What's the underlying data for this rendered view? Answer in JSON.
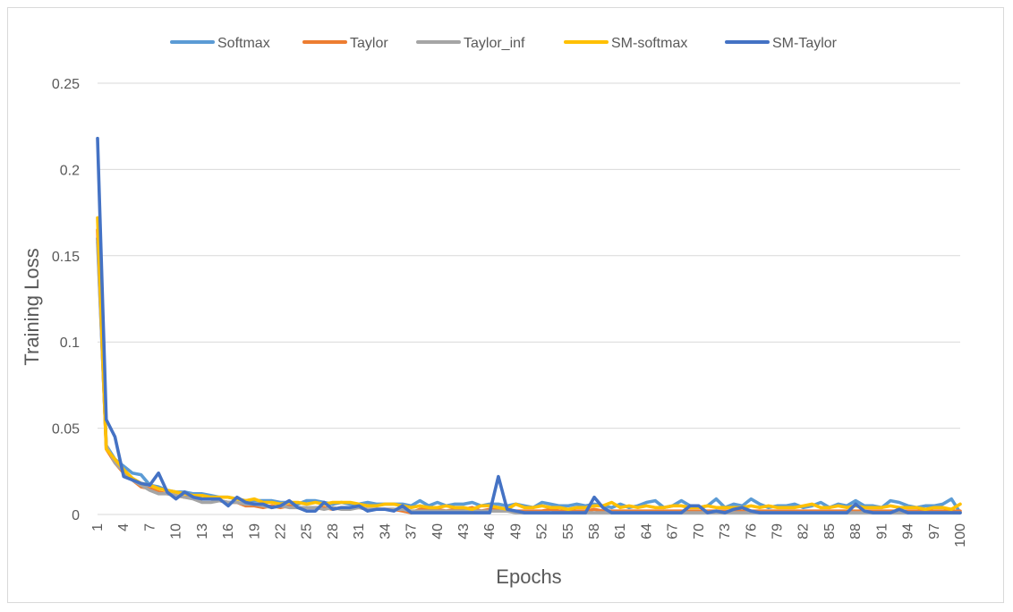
{
  "chart_data": {
    "type": "line",
    "title": "",
    "xlabel": "Epochs",
    "ylabel": "Training Loss",
    "ylim": [
      0,
      0.25
    ],
    "yticks": [
      "0",
      "0.05",
      "0.1",
      "0.15",
      "0.2",
      "0.25"
    ],
    "grid": "horizontal",
    "legend_position": "top",
    "x": [
      1,
      2,
      3,
      4,
      5,
      6,
      7,
      8,
      9,
      10,
      11,
      12,
      13,
      14,
      15,
      16,
      17,
      18,
      19,
      20,
      21,
      22,
      23,
      24,
      25,
      26,
      27,
      28,
      29,
      30,
      31,
      32,
      33,
      34,
      35,
      36,
      37,
      38,
      39,
      40,
      41,
      42,
      43,
      44,
      45,
      46,
      47,
      48,
      49,
      50,
      51,
      52,
      53,
      54,
      55,
      56,
      57,
      58,
      59,
      60,
      61,
      62,
      63,
      64,
      65,
      66,
      67,
      68,
      69,
      70,
      71,
      72,
      73,
      74,
      75,
      76,
      77,
      78,
      79,
      80,
      81,
      82,
      83,
      84,
      85,
      86,
      87,
      88,
      89,
      90,
      91,
      92,
      93,
      94,
      95,
      96,
      97,
      98,
      99,
      100
    ],
    "xticks": [
      "1",
      "4",
      "7",
      "10",
      "13",
      "16",
      "19",
      "22",
      "25",
      "28",
      "31",
      "34",
      "37",
      "40",
      "43",
      "46",
      "49",
      "52",
      "55",
      "58",
      "61",
      "64",
      "67",
      "70",
      "73",
      "76",
      "79",
      "82",
      "85",
      "88",
      "91",
      "94",
      "97",
      "100"
    ],
    "series": [
      {
        "name": "Softmax",
        "color": "#5b9bd5",
        "values": [
          0.16,
          0.04,
          0.032,
          0.028,
          0.024,
          0.023,
          0.017,
          0.016,
          0.014,
          0.013,
          0.013,
          0.012,
          0.012,
          0.011,
          0.01,
          0.01,
          0.009,
          0.008,
          0.008,
          0.008,
          0.008,
          0.007,
          0.007,
          0.006,
          0.008,
          0.008,
          0.007,
          0.006,
          0.007,
          0.006,
          0.006,
          0.007,
          0.006,
          0.006,
          0.006,
          0.006,
          0.005,
          0.008,
          0.005,
          0.007,
          0.005,
          0.006,
          0.006,
          0.007,
          0.005,
          0.006,
          0.006,
          0.005,
          0.006,
          0.005,
          0.004,
          0.007,
          0.006,
          0.005,
          0.005,
          0.006,
          0.005,
          0.006,
          0.005,
          0.004,
          0.006,
          0.004,
          0.005,
          0.007,
          0.008,
          0.004,
          0.005,
          0.008,
          0.005,
          0.004,
          0.005,
          0.009,
          0.004,
          0.006,
          0.005,
          0.009,
          0.006,
          0.004,
          0.005,
          0.005,
          0.006,
          0.004,
          0.005,
          0.007,
          0.004,
          0.006,
          0.005,
          0.008,
          0.005,
          0.005,
          0.004,
          0.008,
          0.007,
          0.005,
          0.004,
          0.005,
          0.005,
          0.006,
          0.009,
          0.001
        ]
      },
      {
        "name": "Taylor",
        "color": "#ed7d31",
        "values": [
          0.165,
          0.038,
          0.03,
          0.024,
          0.02,
          0.016,
          0.015,
          0.013,
          0.012,
          0.011,
          0.01,
          0.01,
          0.009,
          0.009,
          0.008,
          0.007,
          0.007,
          0.005,
          0.005,
          0.004,
          0.005,
          0.004,
          0.005,
          0.004,
          0.004,
          0.004,
          0.004,
          0.003,
          0.004,
          0.004,
          0.004,
          0.003,
          0.003,
          0.003,
          0.003,
          0.002,
          0.001,
          0.003,
          0.003,
          0.003,
          0.002,
          0.003,
          0.003,
          0.004,
          0.002,
          0.003,
          0.003,
          0.002,
          0.002,
          0.002,
          0.002,
          0.002,
          0.003,
          0.002,
          0.002,
          0.002,
          0.002,
          0.003,
          0.002,
          0.002,
          0.002,
          0.002,
          0.002,
          0.002,
          0.002,
          0.002,
          0.002,
          0.002,
          0.002,
          0.002,
          0.002,
          0.002,
          0.002,
          0.002,
          0.002,
          0.002,
          0.002,
          0.002,
          0.002,
          0.002,
          0.002,
          0.002,
          0.002,
          0.002,
          0.002,
          0.002,
          0.002,
          0.002,
          0.002,
          0.002,
          0.002,
          0.002,
          0.002,
          0.002,
          0.002,
          0.002,
          0.002,
          0.002,
          0.002,
          0.002
        ]
      },
      {
        "name": "Taylor_inf",
        "color": "#a5a5a5",
        "values": [
          0.158,
          0.04,
          0.03,
          0.025,
          0.02,
          0.017,
          0.014,
          0.012,
          0.012,
          0.011,
          0.01,
          0.009,
          0.007,
          0.007,
          0.008,
          0.007,
          0.007,
          0.006,
          0.006,
          0.005,
          0.004,
          0.005,
          0.004,
          0.004,
          0.004,
          0.004,
          0.003,
          0.004,
          0.003,
          0.003,
          0.004,
          0.003,
          0.003,
          0.003,
          0.003,
          0.003,
          0.002,
          0.002,
          0.002,
          0.002,
          0.002,
          0.002,
          0.002,
          0.002,
          0.002,
          0.002,
          0.002,
          0.002,
          0.001,
          0.001,
          0.001,
          0.001,
          0.001,
          0.001,
          0.001,
          0.001,
          0.001,
          0.001,
          0.001,
          0.001,
          0.001,
          0.001,
          0.001,
          0.001,
          0.001,
          0.001,
          0.001,
          0.001,
          0.001,
          0.001,
          0.001,
          0.001,
          0.001,
          0.001,
          0.001,
          0.001,
          0.001,
          0.001,
          0.001,
          0.001,
          0.001,
          0.001,
          0.001,
          0.001,
          0.001,
          0.001,
          0.001,
          0.001,
          0.001,
          0.001,
          0.001,
          0.001,
          0.001,
          0.001,
          0.001,
          0.001,
          0.001,
          0.001,
          0.001,
          0.001
        ]
      },
      {
        "name": "SM-softmax",
        "color": "#ffc000",
        "values": [
          0.172,
          0.038,
          0.032,
          0.026,
          0.021,
          0.018,
          0.017,
          0.015,
          0.014,
          0.013,
          0.012,
          0.011,
          0.011,
          0.01,
          0.01,
          0.01,
          0.009,
          0.008,
          0.009,
          0.007,
          0.007,
          0.006,
          0.007,
          0.007,
          0.006,
          0.007,
          0.006,
          0.007,
          0.007,
          0.007,
          0.006,
          0.005,
          0.005,
          0.006,
          0.006,
          0.005,
          0.004,
          0.005,
          0.004,
          0.004,
          0.005,
          0.004,
          0.004,
          0.003,
          0.005,
          0.005,
          0.004,
          0.003,
          0.006,
          0.004,
          0.004,
          0.005,
          0.004,
          0.004,
          0.003,
          0.004,
          0.004,
          0.005,
          0.005,
          0.007,
          0.004,
          0.005,
          0.004,
          0.005,
          0.004,
          0.004,
          0.005,
          0.005,
          0.004,
          0.004,
          0.005,
          0.004,
          0.004,
          0.004,
          0.004,
          0.005,
          0.004,
          0.005,
          0.004,
          0.004,
          0.004,
          0.005,
          0.006,
          0.004,
          0.004,
          0.005,
          0.004,
          0.005,
          0.004,
          0.004,
          0.004,
          0.005,
          0.004,
          0.004,
          0.004,
          0.003,
          0.004,
          0.004,
          0.003,
          0.006
        ]
      },
      {
        "name": "SM-Taylor",
        "color": "#4472c4",
        "values": [
          0.218,
          0.055,
          0.045,
          0.022,
          0.02,
          0.018,
          0.017,
          0.024,
          0.013,
          0.009,
          0.013,
          0.01,
          0.009,
          0.009,
          0.009,
          0.005,
          0.01,
          0.007,
          0.006,
          0.006,
          0.004,
          0.005,
          0.008,
          0.004,
          0.002,
          0.002,
          0.007,
          0.003,
          0.004,
          0.004,
          0.005,
          0.002,
          0.003,
          0.003,
          0.002,
          0.005,
          0.001,
          0.001,
          0.001,
          0.001,
          0.001,
          0.001,
          0.001,
          0.001,
          0.001,
          0.001,
          0.022,
          0.003,
          0.002,
          0.001,
          0.001,
          0.001,
          0.001,
          0.001,
          0.001,
          0.001,
          0.001,
          0.01,
          0.004,
          0.001,
          0.001,
          0.001,
          0.001,
          0.001,
          0.001,
          0.001,
          0.001,
          0.001,
          0.005,
          0.005,
          0.001,
          0.002,
          0.001,
          0.003,
          0.004,
          0.002,
          0.001,
          0.001,
          0.001,
          0.001,
          0.001,
          0.001,
          0.001,
          0.001,
          0.001,
          0.001,
          0.001,
          0.006,
          0.002,
          0.001,
          0.001,
          0.001,
          0.003,
          0.001,
          0.001,
          0.001,
          0.001,
          0.001,
          0.001,
          0.001
        ]
      }
    ]
  }
}
